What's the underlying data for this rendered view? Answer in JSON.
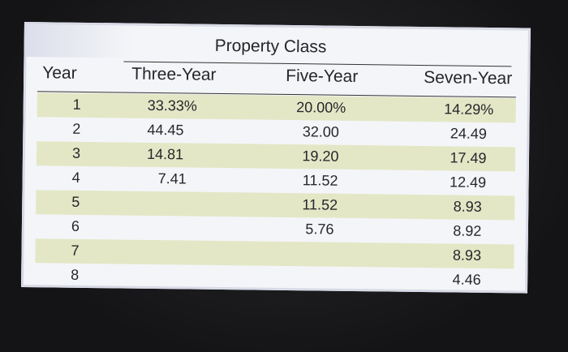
{
  "table": {
    "group_header": "Property Class",
    "columns": {
      "year": "Year",
      "three": "Three-Year",
      "five": "Five-Year",
      "seven": "Seven-Year"
    },
    "rows": [
      {
        "year": "1",
        "three": "33.33%",
        "five": "20.00%",
        "seven": "14.29%"
      },
      {
        "year": "2",
        "three": "44.45",
        "five": "32.00",
        "seven": "24.49"
      },
      {
        "year": "3",
        "three": "14.81",
        "five": "19.20",
        "seven": "17.49"
      },
      {
        "year": "4",
        "three": "7.41",
        "five": "11.52",
        "seven": "12.49"
      },
      {
        "year": "5",
        "three": "",
        "five": "11.52",
        "seven": "8.93"
      },
      {
        "year": "6",
        "three": "",
        "five": "5.76",
        "seven": "8.92"
      },
      {
        "year": "7",
        "three": "",
        "five": "",
        "seven": "8.93"
      },
      {
        "year": "8",
        "three": "",
        "five": "",
        "seven": "4.46"
      }
    ]
  }
}
